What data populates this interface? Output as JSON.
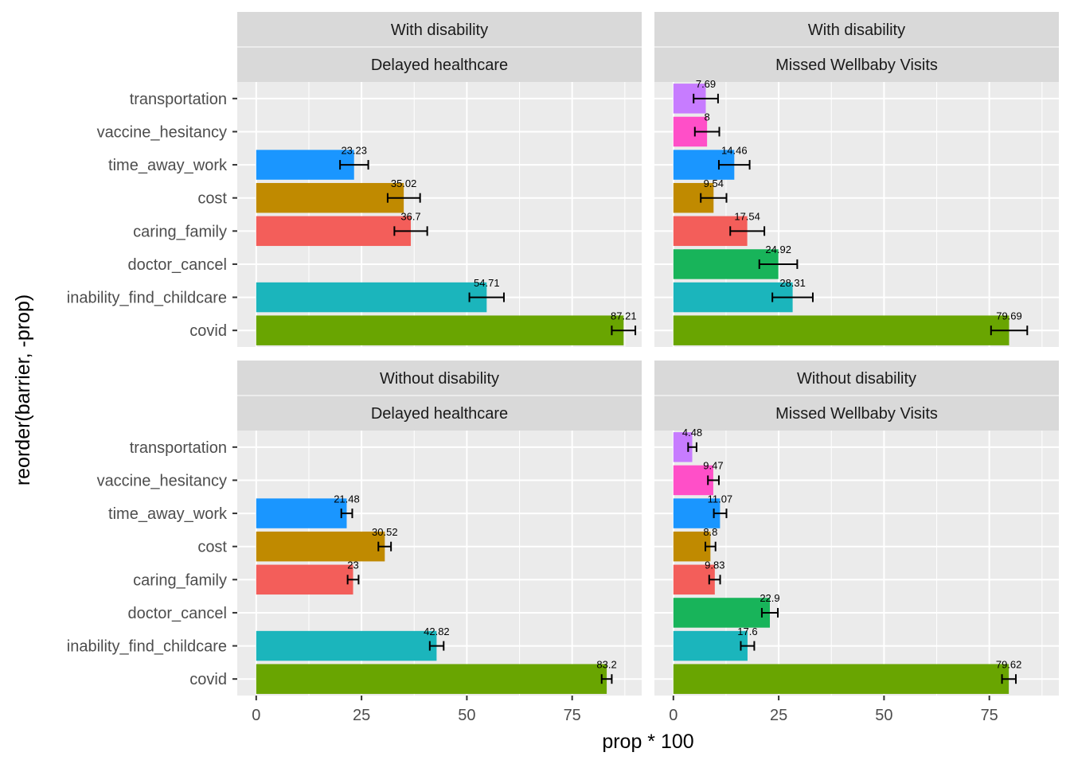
{
  "chart_data": {
    "type": "bar",
    "orientation": "horizontal",
    "xlabel": "prop * 100",
    "ylabel": "reorder(barrier, -prop)",
    "xlim": [
      -4.5,
      91.5
    ],
    "x_ticks": [
      "0",
      "25",
      "50",
      "75"
    ],
    "categories": [
      "transportation",
      "vaccine_hesitancy",
      "time_away_work",
      "cost",
      "caring_family",
      "doctor_cancel",
      "inability_find_childcare",
      "covid"
    ],
    "colors": {
      "transportation": "#C77CFF",
      "vaccine_hesitancy": "#FF4FC8",
      "time_away_work": "#1A96FF",
      "cost": "#C08A00",
      "caring_family": "#F35E5A",
      "doctor_cancel": "#18B45A",
      "inability_find_childcare": "#1BB5BC",
      "covid": "#69A501"
    },
    "grid": true,
    "legend": "none",
    "panels": [
      {
        "strip_top": "With disability",
        "strip_bottom": "Delayed healthcare",
        "bars": [
          {
            "category": "time_away_work",
            "value": 23.23,
            "label": "23.23",
            "err_low": 19.9,
            "err_high": 26.6
          },
          {
            "category": "cost",
            "value": 35.02,
            "label": "35.02",
            "err_low": 31.2,
            "err_high": 38.9
          },
          {
            "category": "caring_family",
            "value": 36.7,
            "label": "36.7",
            "err_low": 32.8,
            "err_high": 40.6
          },
          {
            "category": "inability_find_childcare",
            "value": 54.71,
            "label": "54.71",
            "err_low": 50.6,
            "err_high": 58.8
          },
          {
            "category": "covid",
            "value": 87.21,
            "label": "87.21",
            "err_low": 84.4,
            "err_high": 90.0
          }
        ]
      },
      {
        "strip_top": "With disability",
        "strip_bottom": "Missed Wellbaby Visits",
        "bars": [
          {
            "category": "transportation",
            "value": 7.69,
            "label": "7.69",
            "err_low": 4.8,
            "err_high": 10.6
          },
          {
            "category": "vaccine_hesitancy",
            "value": 8,
            "label": "8",
            "err_low": 5.1,
            "err_high": 10.9
          },
          {
            "category": "time_away_work",
            "value": 14.46,
            "label": "14.46",
            "err_low": 10.8,
            "err_high": 18.1
          },
          {
            "category": "cost",
            "value": 9.54,
            "label": "9.54",
            "err_low": 6.5,
            "err_high": 12.6
          },
          {
            "category": "caring_family",
            "value": 17.54,
            "label": "17.54",
            "err_low": 13.5,
            "err_high": 21.6
          },
          {
            "category": "doctor_cancel",
            "value": 24.92,
            "label": "24.92",
            "err_low": 20.4,
            "err_high": 29.4
          },
          {
            "category": "inability_find_childcare",
            "value": 28.31,
            "label": "28.31",
            "err_low": 23.5,
            "err_high": 33.1
          },
          {
            "category": "covid",
            "value": 79.69,
            "label": "79.69",
            "err_low": 75.4,
            "err_high": 84.0
          }
        ]
      },
      {
        "strip_top": "Without disability",
        "strip_bottom": "Delayed healthcare",
        "bars": [
          {
            "category": "time_away_work",
            "value": 21.48,
            "label": "21.48",
            "err_low": 20.2,
            "err_high": 22.8
          },
          {
            "category": "cost",
            "value": 30.52,
            "label": "30.52",
            "err_low": 29.0,
            "err_high": 32.0
          },
          {
            "category": "caring_family",
            "value": 23,
            "label": "23",
            "err_low": 21.7,
            "err_high": 24.3
          },
          {
            "category": "inability_find_childcare",
            "value": 42.82,
            "label": "42.82",
            "err_low": 41.2,
            "err_high": 44.5
          },
          {
            "category": "covid",
            "value": 83.2,
            "label": "83.2",
            "err_low": 82.0,
            "err_high": 84.4
          }
        ]
      },
      {
        "strip_top": "Without disability",
        "strip_bottom": "Missed Wellbaby Visits",
        "bars": [
          {
            "category": "transportation",
            "value": 4.48,
            "label": "4.48",
            "err_low": 3.5,
            "err_high": 5.5
          },
          {
            "category": "vaccine_hesitancy",
            "value": 9.47,
            "label": "9.47",
            "err_low": 8.2,
            "err_high": 10.8
          },
          {
            "category": "time_away_work",
            "value": 11.07,
            "label": "11.07",
            "err_low": 9.6,
            "err_high": 12.6
          },
          {
            "category": "cost",
            "value": 8.8,
            "label": "8.8",
            "err_low": 7.6,
            "err_high": 10.0
          },
          {
            "category": "caring_family",
            "value": 9.83,
            "label": "9.83",
            "err_low": 8.5,
            "err_high": 11.1
          },
          {
            "category": "doctor_cancel",
            "value": 22.9,
            "label": "22.9",
            "err_low": 21.0,
            "err_high": 24.8
          },
          {
            "category": "inability_find_childcare",
            "value": 17.6,
            "label": "17.6",
            "err_low": 16.0,
            "err_high": 19.2
          },
          {
            "category": "covid",
            "value": 79.62,
            "label": "79.62",
            "err_low": 78.0,
            "err_high": 81.3
          }
        ]
      }
    ]
  }
}
